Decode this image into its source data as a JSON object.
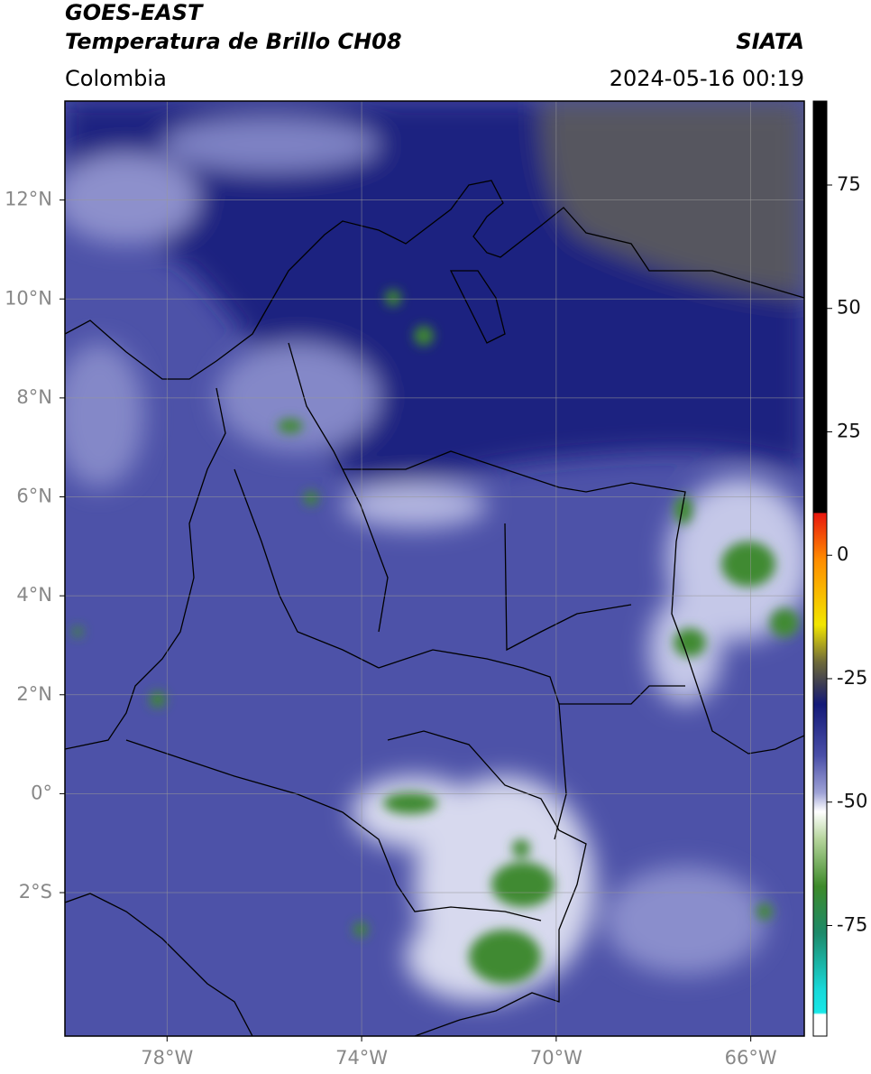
{
  "header": {
    "satellite": "GOES-EAST",
    "product": "Temperatura de Brillo CH08",
    "source": "SIATA",
    "region": "Colombia",
    "datetime": "2024-05-16 00:19"
  },
  "map": {
    "xlim": [
      -80.1,
      -64.9
    ],
    "ylim": [
      -4.9,
      14
    ],
    "xticks": [
      {
        "value": -78,
        "label": "78°W"
      },
      {
        "value": -74,
        "label": "74°W"
      },
      {
        "value": -70,
        "label": "70°W"
      },
      {
        "value": -66,
        "label": "66°W"
      }
    ],
    "yticks": [
      {
        "value": 12,
        "label": "12°N"
      },
      {
        "value": 10,
        "label": "10°N"
      },
      {
        "value": 8,
        "label": "8°N"
      },
      {
        "value": 6,
        "label": "6°N"
      },
      {
        "value": 4,
        "label": "4°N"
      },
      {
        "value": 2,
        "label": "2°N"
      },
      {
        "value": 0,
        "label": "0°"
      },
      {
        "value": -2,
        "label": "2°S"
      }
    ],
    "grid": true
  },
  "colorbar": {
    "lim": [
      -97.4,
      92
    ],
    "ticks": [
      75,
      50,
      25,
      0,
      -25,
      -50,
      -75
    ]
  }
}
